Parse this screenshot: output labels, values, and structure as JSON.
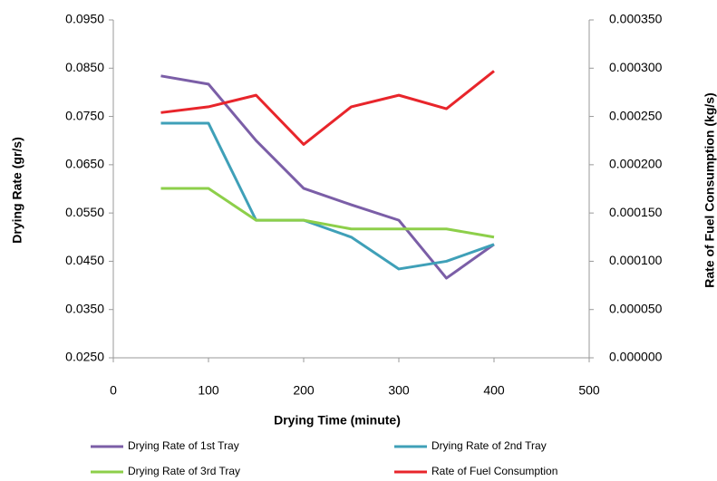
{
  "chart_data": {
    "type": "line",
    "xlabel": "Drying Time (minute)",
    "ylabel": "Drying Rate (gr/s)",
    "y2label": "Rate of Fuel Consumption (kg/s)",
    "x": [
      50,
      100,
      150,
      200,
      250,
      300,
      350,
      400
    ],
    "xlim": [
      0,
      500
    ],
    "xticks": [
      0,
      100,
      200,
      300,
      400,
      500
    ],
    "ylim": [
      0.025,
      0.095
    ],
    "yticks": [
      {
        "value": 0.025,
        "label": "0.0250"
      },
      {
        "value": 0.035,
        "label": "0.0350"
      },
      {
        "value": 0.045,
        "label": "0.0450"
      },
      {
        "value": 0.055,
        "label": "0.0550"
      },
      {
        "value": 0.065,
        "label": "0.0650"
      },
      {
        "value": 0.075,
        "label": "0.0750"
      },
      {
        "value": 0.085,
        "label": "0.0850"
      },
      {
        "value": 0.095,
        "label": "0.0950"
      }
    ],
    "y2lim": [
      0,
      0.00035
    ],
    "y2ticks": [
      {
        "value": 0,
        "label": "0.000000"
      },
      {
        "value": 5e-05,
        "label": "0.000050"
      },
      {
        "value": 0.0001,
        "label": "0.000100"
      },
      {
        "value": 0.00015,
        "label": "0.000150"
      },
      {
        "value": 0.0002,
        "label": "0.000200"
      },
      {
        "value": 0.00025,
        "label": "0.000250"
      },
      {
        "value": 0.0003,
        "label": "0.000300"
      },
      {
        "value": 0.00035,
        "label": "0.000350"
      }
    ],
    "legend": "bottom",
    "series": [
      {
        "name": "Drying Rate of 1st Tray",
        "color": "#7b5ea7",
        "values": [
          0.0834,
          0.0817,
          0.07,
          0.0601,
          0.0567,
          0.0535,
          0.0415,
          0.0485
        ]
      },
      {
        "name": "Drying Rate of 2nd Tray",
        "color": "#3fa0b8",
        "values": [
          0.0736,
          0.0736,
          0.0535,
          0.0535,
          0.05,
          0.0434,
          0.045,
          0.0485
        ]
      },
      {
        "name": "Drying Rate of 3rd Tray",
        "color": "#8dcf4a",
        "values": [
          0.0601,
          0.0601,
          0.0535,
          0.0535,
          0.0517,
          0.0517,
          0.0517,
          0.05
        ]
      },
      {
        "name": "Rate of Fuel Consumption",
        "color": "#e8252b",
        "axis": "y2",
        "values": [
          0.000254,
          0.00026,
          0.000272,
          0.000221,
          0.00026,
          0.000272,
          0.000258,
          0.000297
        ]
      }
    ]
  }
}
